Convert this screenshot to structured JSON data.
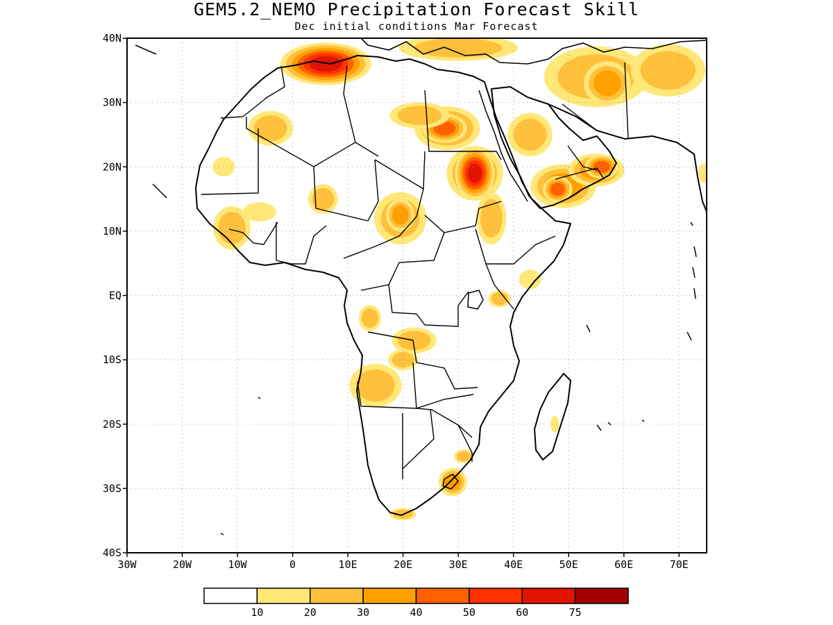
{
  "title": "GEM5.2_NEMO Precipitation Forecast Skill",
  "subtitle": "Dec initial conditions  Mar Forecast",
  "map": {
    "lon_range": [
      -30,
      75
    ],
    "lat_range": [
      -40,
      40
    ],
    "grid": true,
    "lat_ticks": [
      {
        "value": 40,
        "label": "40N"
      },
      {
        "value": 30,
        "label": "30N"
      },
      {
        "value": 20,
        "label": "20N"
      },
      {
        "value": 10,
        "label": "10N"
      },
      {
        "value": 0,
        "label": "EQ"
      },
      {
        "value": -10,
        "label": "10S"
      },
      {
        "value": -20,
        "label": "20S"
      },
      {
        "value": -30,
        "label": "30S"
      },
      {
        "value": -40,
        "label": "40S"
      }
    ],
    "lon_ticks": [
      {
        "value": -30,
        "label": "30W"
      },
      {
        "value": -20,
        "label": "20W"
      },
      {
        "value": -10,
        "label": "10W"
      },
      {
        "value": 0,
        "label": "0"
      },
      {
        "value": 10,
        "label": "10E"
      },
      {
        "value": 20,
        "label": "20E"
      },
      {
        "value": 30,
        "label": "30E"
      },
      {
        "value": 40,
        "label": "40E"
      },
      {
        "value": 50,
        "label": "50E"
      },
      {
        "value": 60,
        "label": "60E"
      },
      {
        "value": 70,
        "label": "70E"
      }
    ]
  },
  "colorbar": {
    "colors": [
      "#ffffff",
      "#ffe878",
      "#ffc03c",
      "#ffa000",
      "#ff6000",
      "#ff3200",
      "#e11400",
      "#a50000"
    ],
    "labels": [
      "10",
      "20",
      "30",
      "40",
      "50",
      "60",
      "75"
    ]
  },
  "skill_regions": [
    {
      "name": "algeria-tunisia",
      "lon": 6,
      "lat": 36,
      "rx": 3,
      "ry": 1.2,
      "level": 6
    },
    {
      "name": "sudan-north",
      "lon": 33,
      "lat": 19,
      "rx": 3,
      "ry": 2.5,
      "level": 3
    },
    {
      "name": "sudan-core",
      "lon": 33,
      "lat": 19,
      "rx": 1.3,
      "ry": 1.5,
      "level": 6
    },
    {
      "name": "libya-east",
      "lon": 28,
      "lat": 26,
      "rx": 3.5,
      "ry": 2,
      "level": 3
    },
    {
      "name": "libya-core",
      "lon": 27.5,
      "lat": 26,
      "rx": 2,
      "ry": 1.1,
      "level": 4
    },
    {
      "name": "libya-south",
      "lon": 23,
      "lat": 28,
      "rx": 4,
      "ry": 1.5,
      "level": 2
    },
    {
      "name": "yemen",
      "lon": 49,
      "lat": 17,
      "rx": 3.5,
      "ry": 2,
      "level": 3
    },
    {
      "name": "yemen-core",
      "lon": 48,
      "lat": 16.5,
      "rx": 1.3,
      "ry": 1,
      "level": 4
    },
    {
      "name": "oman-south",
      "lon": 55,
      "lat": 19.5,
      "rx": 3,
      "ry": 1.5,
      "level": 3
    },
    {
      "name": "oman-core",
      "lon": 56,
      "lat": 20,
      "rx": 1.5,
      "ry": 0.9,
      "level": 4
    },
    {
      "name": "iran",
      "lon": 55,
      "lat": 34,
      "rx": 7,
      "ry": 3.5,
      "level": 2
    },
    {
      "name": "iran-core",
      "lon": 57,
      "lat": 33,
      "rx": 2.5,
      "ry": 2,
      "level": 3
    },
    {
      "name": "afghanistan",
      "lon": 68,
      "lat": 35,
      "rx": 5,
      "ry": 3,
      "level": 2
    },
    {
      "name": "mediterranean",
      "lon": 30,
      "lat": 38.5,
      "rx": 8,
      "ry": 1.5,
      "level": 2
    },
    {
      "name": "saudi-central",
      "lon": 43,
      "lat": 25,
      "rx": 3,
      "ry": 2.5,
      "level": 2
    },
    {
      "name": "chad-east",
      "lon": 19.5,
      "lat": 12,
      "rx": 3.5,
      "ry": 3,
      "level": 2
    },
    {
      "name": "chad-core",
      "lon": 19.5,
      "lat": 12.5,
      "rx": 1.5,
      "ry": 1.5,
      "level": 3
    },
    {
      "name": "ethiopia-west",
      "lon": 36,
      "lat": 12,
      "rx": 2,
      "ry": 3,
      "level": 2
    },
    {
      "name": "mali-north",
      "lon": -4,
      "lat": 26,
      "rx": 3,
      "ry": 2,
      "level": 2
    },
    {
      "name": "niger-south",
      "lon": 5.5,
      "lat": 15,
      "rx": 2,
      "ry": 1.7,
      "level": 2
    },
    {
      "name": "guinea",
      "lon": -11,
      "lat": 10.5,
      "rx": 2.5,
      "ry": 2.5,
      "level": 2
    },
    {
      "name": "mauritania",
      "lon": -12.5,
      "lat": 20,
      "rx": 2,
      "ry": 1.5,
      "level": 1
    },
    {
      "name": "mali-south",
      "lon": -6,
      "lat": 13,
      "rx": 3,
      "ry": 1.5,
      "level": 1
    },
    {
      "name": "somalia",
      "lon": 43,
      "lat": 2.5,
      "rx": 2,
      "ry": 1.5,
      "level": 1
    },
    {
      "name": "kenya",
      "lon": 37.5,
      "lat": -0.5,
      "rx": 1.5,
      "ry": 1,
      "level": 2
    },
    {
      "name": "drc-south",
      "lon": 22,
      "lat": -7,
      "rx": 3,
      "ry": 1.5,
      "level": 2
    },
    {
      "name": "gabon-coast",
      "lon": 14,
      "lat": -3.5,
      "rx": 1.5,
      "ry": 1.5,
      "level": 2
    },
    {
      "name": "angola",
      "lon": 15,
      "lat": -14,
      "rx": 3.5,
      "ry": 2.5,
      "level": 2
    },
    {
      "name": "zambia",
      "lon": 20,
      "lat": -10,
      "rx": 2,
      "ry": 1.2,
      "level": 2
    },
    {
      "name": "lesotho",
      "lon": 29,
      "lat": -29,
      "rx": 1.5,
      "ry": 1.3,
      "level": 3
    },
    {
      "name": "south-africa-coast",
      "lon": 20,
      "lat": -34,
      "rx": 1.8,
      "ry": 0.7,
      "level": 2
    },
    {
      "name": "madagascar",
      "lon": 47.5,
      "lat": -20,
      "rx": 0.8,
      "ry": 1.3,
      "level": 1
    },
    {
      "name": "mozambique-south",
      "lon": 31,
      "lat": -25,
      "rx": 1.3,
      "ry": 0.8,
      "level": 2
    },
    {
      "name": "india-west",
      "lon": 74.5,
      "lat": 19,
      "rx": 1,
      "ry": 1.5,
      "level": 1
    }
  ]
}
